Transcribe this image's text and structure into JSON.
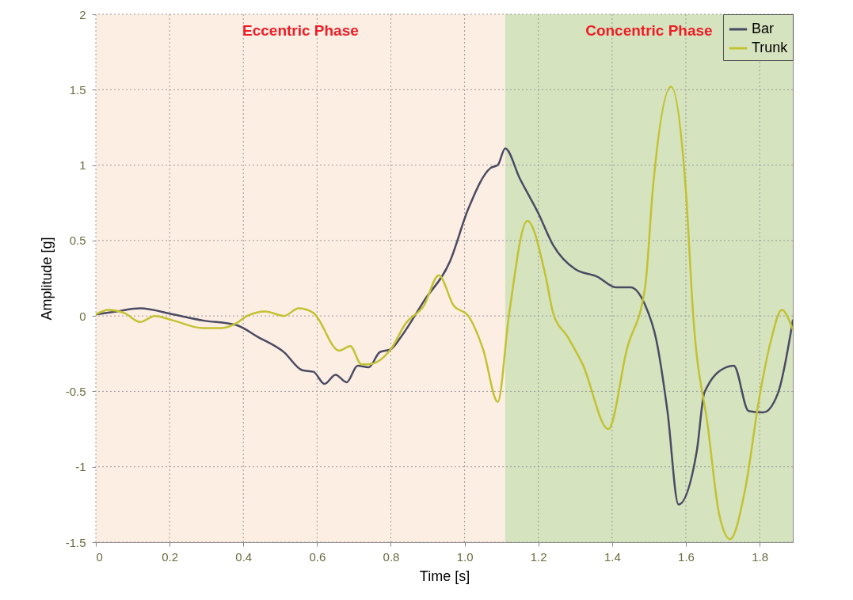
{
  "chart_data": {
    "type": "line",
    "xlabel": "Time [s]",
    "ylabel": "Amplitude [g]",
    "xlim": [
      0,
      1.89
    ],
    "ylim": [
      -1.5,
      2
    ],
    "xticks": [
      0,
      0.2,
      0.4,
      0.6,
      0.8,
      {
        "value": 1,
        "label": "1.0"
      },
      1.2,
      1.4,
      1.6,
      1.8
    ],
    "yticks": [
      -1.5,
      -1,
      -0.5,
      0,
      0.5,
      1,
      1.5,
      2
    ],
    "grid": true,
    "legend": "top right",
    "line_style": "solid",
    "bands": [
      {
        "axis": "x",
        "from": 0,
        "to": 1.11,
        "label": "Eccentric Phase",
        "color": "#fdeee3"
      },
      {
        "axis": "x",
        "from": 1.11,
        "to": 1.89,
        "label": "Concentric Phase",
        "color": "#d6e3bf"
      }
    ],
    "series": [
      {
        "name": "Bar",
        "color": "#4a4a63",
        "x": [
          0,
          0.056,
          0.12,
          0.21,
          0.29,
          0.38,
          0.44,
          0.51,
          0.56,
          0.59,
          0.62,
          0.65,
          0.68,
          0.71,
          0.74,
          0.77,
          0.8,
          0.83,
          0.89,
          0.96,
          1.01,
          1.07,
          1.09,
          1.11,
          1.15,
          1.2,
          1.24,
          1.3,
          1.36,
          1.41,
          1.45,
          1.49,
          1.52,
          1.55,
          1.58,
          1.63,
          1.65,
          1.71,
          1.73,
          1.77,
          1.81,
          1.85,
          1.89
        ],
        "values": [
          0.01,
          0.03,
          0.05,
          0.01,
          -0.03,
          -0.06,
          -0.14,
          -0.24,
          -0.36,
          -0.37,
          -0.45,
          -0.39,
          -0.44,
          -0.33,
          -0.34,
          -0.24,
          -0.22,
          -0.13,
          0.1,
          0.36,
          0.71,
          0.98,
          1.0,
          1.11,
          0.91,
          0.68,
          0.47,
          0.31,
          0.26,
          0.19,
          0.19,
          0.07,
          -0.16,
          -0.63,
          -1.25,
          -0.89,
          -0.51,
          -0.34,
          -0.33,
          -0.63,
          -0.64,
          -0.51,
          -0.03
        ]
      },
      {
        "name": "Trunk",
        "color": "#c2c232",
        "x": [
          0,
          0.034,
          0.077,
          0.12,
          0.16,
          0.21,
          0.29,
          0.34,
          0.38,
          0.41,
          0.46,
          0.51,
          0.55,
          0.59,
          0.66,
          0.69,
          0.72,
          0.74,
          0.8,
          0.84,
          0.89,
          0.93,
          0.97,
          1.01,
          1.05,
          1.09,
          1.12,
          1.17,
          1.22,
          1.24,
          1.28,
          1.32,
          1.39,
          1.44,
          1.49,
          1.51,
          1.56,
          1.6,
          1.62,
          1.66,
          1.69,
          1.72,
          1.76,
          1.8,
          1.83,
          1.86,
          1.89
        ],
        "values": [
          0.01,
          0.04,
          0.02,
          -0.04,
          0.0,
          -0.03,
          -0.08,
          -0.08,
          -0.05,
          0.0,
          0.03,
          0.0,
          0.05,
          0.02,
          -0.23,
          -0.2,
          -0.32,
          -0.32,
          -0.22,
          -0.05,
          0.07,
          0.27,
          0.07,
          0.0,
          -0.22,
          -0.57,
          0.0,
          0.63,
          0.26,
          0.02,
          -0.14,
          -0.32,
          -0.75,
          -0.22,
          0.2,
          0.83,
          1.52,
          0.83,
          0.0,
          -0.74,
          -1.31,
          -1.48,
          -1.16,
          -0.53,
          -0.17,
          0.04,
          -0.09
        ]
      }
    ]
  }
}
